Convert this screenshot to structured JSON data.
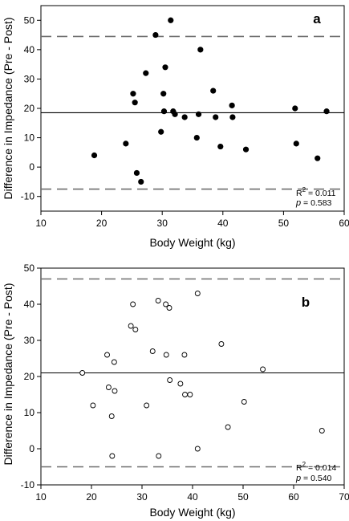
{
  "chart_data": [
    {
      "type": "scatter",
      "panel_label": "a",
      "xlabel": "Body Weight (kg)",
      "ylabel": "Difference in Impedance (Pre - Post)",
      "xlim": [
        10,
        60
      ],
      "ylim": [
        -15,
        55
      ],
      "xticks": [
        10,
        20,
        30,
        40,
        50,
        60
      ],
      "yticks": [
        -10,
        0,
        10,
        20,
        30,
        40,
        50
      ],
      "marker": "filled-circle",
      "points": [
        {
          "x": 18.8,
          "y": 4
        },
        {
          "x": 24.0,
          "y": 8
        },
        {
          "x": 25.2,
          "y": 25
        },
        {
          "x": 25.5,
          "y": 22
        },
        {
          "x": 25.8,
          "y": -2
        },
        {
          "x": 26.5,
          "y": -5
        },
        {
          "x": 27.3,
          "y": 32
        },
        {
          "x": 28.9,
          "y": 45
        },
        {
          "x": 29.8,
          "y": 12
        },
        {
          "x": 30.2,
          "y": 25
        },
        {
          "x": 30.3,
          "y": 19
        },
        {
          "x": 30.5,
          "y": 34
        },
        {
          "x": 31.4,
          "y": 50
        },
        {
          "x": 31.8,
          "y": 19
        },
        {
          "x": 32.1,
          "y": 18
        },
        {
          "x": 33.7,
          "y": 17
        },
        {
          "x": 35.7,
          "y": 10
        },
        {
          "x": 36.0,
          "y": 18
        },
        {
          "x": 36.3,
          "y": 40
        },
        {
          "x": 38.4,
          "y": 26
        },
        {
          "x": 38.8,
          "y": 17
        },
        {
          "x": 39.6,
          "y": 7
        },
        {
          "x": 41.5,
          "y": 21
        },
        {
          "x": 41.6,
          "y": 17
        },
        {
          "x": 43.8,
          "y": 6
        },
        {
          "x": 51.9,
          "y": 20
        },
        {
          "x": 52.1,
          "y": 8
        },
        {
          "x": 55.6,
          "y": 3
        },
        {
          "x": 57.1,
          "y": 19
        }
      ],
      "reference_lines": [
        {
          "style": "solid",
          "y": 18.5
        },
        {
          "style": "dashed",
          "y": 44.5
        },
        {
          "style": "dashed",
          "y": -7.5
        }
      ],
      "stats": {
        "r2_prefix": "R",
        "r2_superscript": "2",
        "r2_value": " = 0.011",
        "p_label": "p",
        "p_value": "  = 0.583"
      }
    },
    {
      "type": "scatter",
      "panel_label": "b",
      "xlabel": "Body Weight (kg)",
      "ylabel": "Difference in Impedance (Pre - Post)",
      "xlim": [
        10,
        70
      ],
      "ylim": [
        -10,
        50
      ],
      "xticks": [
        10,
        20,
        30,
        40,
        50,
        60,
        70
      ],
      "yticks": [
        -10,
        0,
        10,
        20,
        30,
        40,
        50
      ],
      "marker": "open-circle",
      "points": [
        {
          "x": 18.2,
          "y": 21
        },
        {
          "x": 20.3,
          "y": 12
        },
        {
          "x": 23.1,
          "y": 26
        },
        {
          "x": 23.4,
          "y": 17
        },
        {
          "x": 24.0,
          "y": 9
        },
        {
          "x": 24.1,
          "y": -2
        },
        {
          "x": 24.5,
          "y": 24
        },
        {
          "x": 24.6,
          "y": 16
        },
        {
          "x": 27.8,
          "y": 34
        },
        {
          "x": 28.2,
          "y": 40
        },
        {
          "x": 28.7,
          "y": 33
        },
        {
          "x": 30.9,
          "y": 12
        },
        {
          "x": 32.1,
          "y": 27
        },
        {
          "x": 33.2,
          "y": 41
        },
        {
          "x": 33.3,
          "y": -2
        },
        {
          "x": 34.7,
          "y": 40
        },
        {
          "x": 34.8,
          "y": 26
        },
        {
          "x": 35.4,
          "y": 39
        },
        {
          "x": 35.5,
          "y": 19
        },
        {
          "x": 37.6,
          "y": 18
        },
        {
          "x": 38.4,
          "y": 26
        },
        {
          "x": 38.5,
          "y": 15
        },
        {
          "x": 39.5,
          "y": 15
        },
        {
          "x": 41.0,
          "y": 43
        },
        {
          "x": 41.0,
          "y": 0
        },
        {
          "x": 45.7,
          "y": 29
        },
        {
          "x": 47.0,
          "y": 6
        },
        {
          "x": 50.2,
          "y": 13
        },
        {
          "x": 53.9,
          "y": 22
        },
        {
          "x": 65.6,
          "y": 5
        }
      ],
      "reference_lines": [
        {
          "style": "solid",
          "y": 21
        },
        {
          "style": "dashed",
          "y": 47
        },
        {
          "style": "dashed",
          "y": -5
        }
      ],
      "stats": {
        "r2_prefix": "R",
        "r2_superscript": "2",
        "r2_value": " = 0.014",
        "p_label": "p",
        "p_value": "  = 0.540"
      }
    }
  ]
}
